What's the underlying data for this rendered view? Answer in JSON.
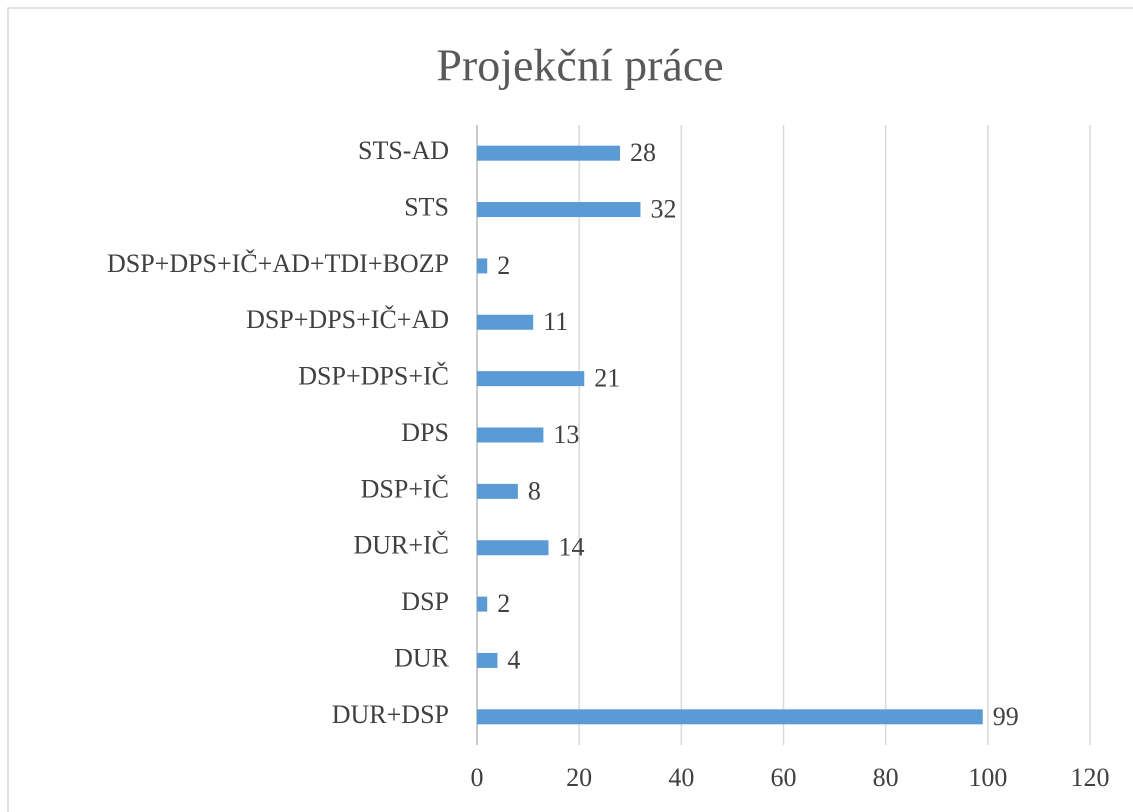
{
  "chart_data": {
    "type": "bar",
    "orientation": "horizontal",
    "title": "Projekční práce",
    "categories": [
      "STS-AD",
      "STS",
      "DSP+DPS+IČ+AD+TDI+BOZP",
      "DSP+DPS+IČ+AD",
      "DSP+DPS+IČ",
      "DPS",
      "DSP+IČ",
      "DUR+IČ",
      "DSP",
      "DUR",
      "DUR+DSP"
    ],
    "values": [
      28,
      32,
      2,
      11,
      21,
      13,
      8,
      14,
      2,
      4,
      99
    ],
    "color": "#5b9bd5",
    "xlim": [
      0,
      120
    ],
    "xticks": [
      0,
      20,
      40,
      60,
      80,
      100,
      120
    ],
    "grid": true
  }
}
